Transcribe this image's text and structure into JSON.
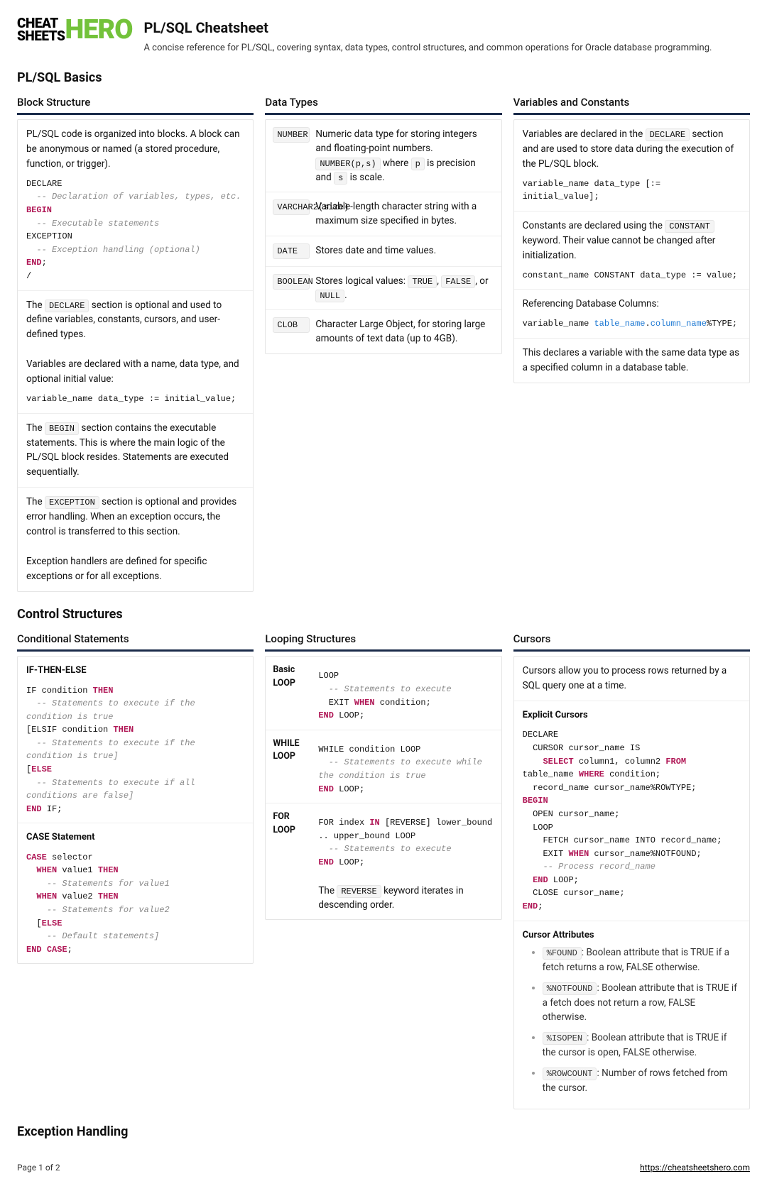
{
  "logo": {
    "line1": "CHEAT",
    "line2": "SHEETS",
    "hero": "HERO"
  },
  "title": "PL/SQL Cheatsheet",
  "subtitle": "A concise reference for PL/SQL, covering syntax, data types, control structures, and common operations for Oracle database programming.",
  "s1": {
    "heading": "PL/SQL Basics",
    "block": {
      "title": "Block Structure",
      "p1": "PL/SQL code is organized into blocks. A block can be anonymous or named (a stored procedure, function, or trigger).",
      "p2a": "The ",
      "p2b": " section is optional and used to define variables, constants, cursors, and user-defined types.",
      "p3": "Variables are declared with a name, data type, and optional initial value:",
      "p4a": "The ",
      "p4b": " section contains the executable statements. This is where the main logic of the PL/SQL block resides. Statements are executed sequentially.",
      "p5a": "The ",
      "p5b": " section is optional and provides error handling. When an exception occurs, the control is transferred to this section.",
      "p6": "Exception handlers are defined for specific exceptions or for all exceptions."
    },
    "types": {
      "title": "Data Types",
      "number_a": "Numeric data type for storing integers and floating-point numbers. ",
      "number_b": " where ",
      "number_c": " is precision and ",
      "number_d": " is scale.",
      "varchar": "Variable-length character string with a maximum size specified in bytes.",
      "date": "Stores date and time values.",
      "bool_a": "Stores logical values: ",
      "bool_b": ", ",
      "bool_c": ", or ",
      "bool_d": ".",
      "clob": "Character Large Object, for storing large amounts of text data (up to 4GB)."
    },
    "vars": {
      "title": "Variables and Constants",
      "p1a": "Variables are declared in the ",
      "p1b": " section and are used to store data during the execution of the PL/SQL block.",
      "p2a": "Constants are declared using the ",
      "p2b": " keyword. Their value cannot be changed after initialization.",
      "p3": "Referencing Database Columns:",
      "p4": "This declares a variable with the same data type as a specified column in a database table."
    }
  },
  "s2": {
    "heading": "Control Structures",
    "cond": {
      "title": "Conditional Statements",
      "h1": "IF-THEN-ELSE",
      "h2": "CASE Statement"
    },
    "loop": {
      "title": "Looping Structures",
      "basic": "Basic LOOP",
      "while": "WHILE LOOP",
      "for": "FOR LOOP",
      "rev_a": "The ",
      "rev_b": " keyword iterates in descending order."
    },
    "cur": {
      "title": "Cursors",
      "p1": "Cursors allow you to process rows returned by a SQL query one at a time.",
      "h1": "Explicit Cursors",
      "h2": "Cursor Attributes",
      "a1": ": Boolean attribute that is TRUE if a fetch returns a row, FALSE otherwise.",
      "a2": ": Boolean attribute that is TRUE if a fetch does not return a row, FALSE otherwise.",
      "a3": ": Boolean attribute that is TRUE if the cursor is open, FALSE otherwise.",
      "a4": ": Number of rows fetched from the cursor."
    }
  },
  "s3": {
    "heading": "Exception Handling"
  },
  "footer": {
    "page": "Page 1 of 2",
    "link": "https://cheatsheetshero.com"
  },
  "codes": {
    "declare": "DECLARE",
    "begin": "BEGIN",
    "exception": "EXCEPTION",
    "constant": "CONSTANT",
    "number": "NUMBER",
    "numberps": "NUMBER(p,s)",
    "p": "p",
    "s": "s",
    "varchar": "VARCHAR2(size)",
    "date": "DATE",
    "boolean": "BOOLEAN",
    "true": "TRUE",
    "false": "FALSE",
    "null": "NULL",
    "clob": "CLOB",
    "reverse": "REVERSE",
    "found": "%FOUND",
    "notfound": "%NOTFOUND",
    "isopen": "%ISOPEN",
    "rowcount": "%ROWCOUNT"
  }
}
